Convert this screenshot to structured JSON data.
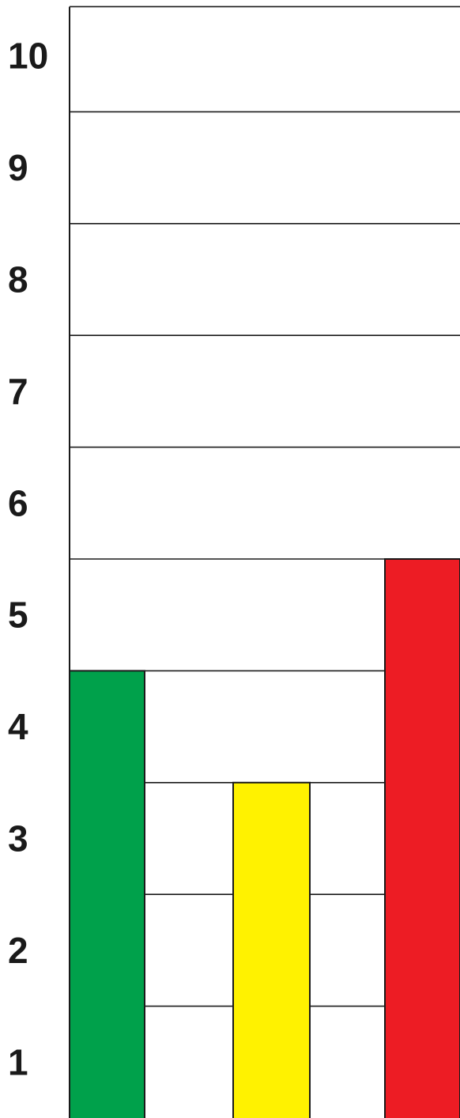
{
  "chart_data": {
    "type": "bar",
    "categories": [
      "",
      "",
      ""
    ],
    "values": [
      4.5,
      3.5,
      5.5
    ],
    "colors": [
      "#00A14B",
      "#FFF200",
      "#ED1C24"
    ],
    "ylim": [
      0.5,
      10.5
    ],
    "ytick_labels": [
      "1",
      "2",
      "3",
      "4",
      "5",
      "6",
      "7",
      "8",
      "9",
      "10"
    ],
    "grid": true,
    "legend": "none",
    "title": "",
    "xlabel": "",
    "ylabel": ""
  }
}
